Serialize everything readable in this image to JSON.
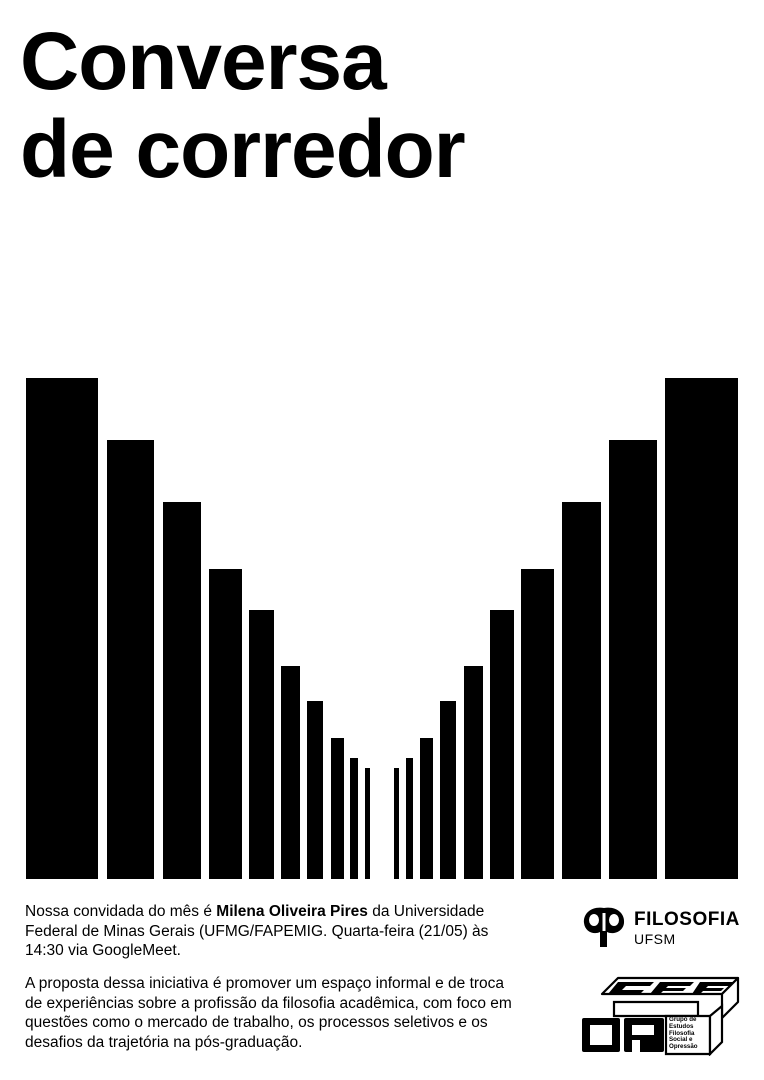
{
  "title": {
    "line1": "Conversa",
    "line2": "de corredor"
  },
  "info": {
    "intro": "Nossa convidada do mês é ",
    "guest": "Milena Oliveira Pires",
    "rest": " da Universidade Federal de Minas Gerais (UFMG/FAPEMIG. Quarta-feira (21/05) às 14:30 via GoogleMeet."
  },
  "description": "A proposta dessa iniciativa é promover um espaço informal e de troca de experiências sobre a profissão da filosofia acadêmica, com foco em questões como o mercado de trabalho, os processos seletivos e os desafios da trajetória na pós-graduação.",
  "logos": {
    "filosofia": {
      "line1": "FILOSOFIA",
      "line2": "UFSM",
      "icon": "filosofia-ufsm-emblem-icon"
    },
    "gefop": {
      "letters": [
        "G",
        "E",
        "F",
        "O",
        "P"
      ],
      "lines": [
        "Grupo de",
        "Estudos",
        "Filosofia",
        "Social e",
        "Opressão"
      ]
    }
  },
  "colors": {
    "background": "#ffffff",
    "ink": "#000000"
  }
}
